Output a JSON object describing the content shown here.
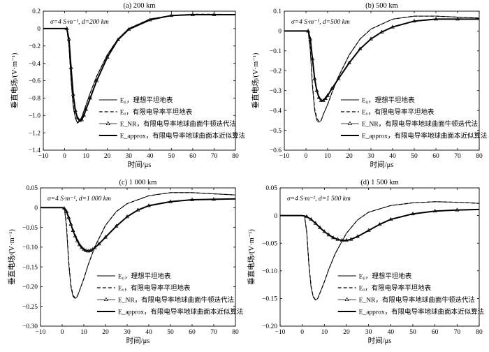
{
  "chart_data": [
    {
      "type": "line",
      "title": "(a) 200 km",
      "annotation": "σ=4 S·m⁻¹, d=200 km",
      "xlabel": "时间/μs",
      "ylabel": "垂直电场/(V·m⁻¹)",
      "xlim": [
        -10,
        80
      ],
      "ylim": [
        -1.4,
        0.2
      ],
      "xticks": [
        -10,
        0,
        10,
        20,
        30,
        40,
        50,
        60,
        70,
        80
      ],
      "yticks": [
        -1.4,
        -1.2,
        -1.0,
        -0.8,
        -0.6,
        -0.4,
        -0.2,
        0,
        0.2
      ],
      "legend_position": "lower-right",
      "series": [
        {
          "name": "E₀，理想平坦地表",
          "style": "thin-solid",
          "x": [
            -10,
            0,
            1,
            2,
            3,
            4,
            5,
            6,
            7,
            8,
            10,
            12,
            15,
            20,
            25,
            30,
            40,
            50,
            60,
            70,
            80
          ],
          "y": [
            0,
            0,
            0,
            -0.2,
            -0.6,
            -0.9,
            -1.03,
            -1.09,
            -1.07,
            -1.02,
            -0.88,
            -0.74,
            -0.55,
            -0.3,
            -0.12,
            0.0,
            0.11,
            0.15,
            0.165,
            0.165,
            0.16
          ]
        },
        {
          "name": "Eₒ，有限电导率平坦地表",
          "style": "dashed",
          "x": [
            -10,
            0,
            1,
            2,
            3,
            4,
            5,
            6,
            7,
            8,
            10,
            12,
            15,
            20,
            25,
            30,
            40,
            50,
            60,
            70,
            80
          ],
          "y": [
            0,
            0,
            0,
            -0.19,
            -0.58,
            -0.88,
            -1.02,
            -1.08,
            -1.07,
            -1.02,
            -0.88,
            -0.74,
            -0.55,
            -0.3,
            -0.12,
            0.0,
            0.11,
            0.15,
            0.165,
            0.165,
            0.16
          ]
        },
        {
          "name": "E_NR，有限电导率地球曲面牛顿迭代法",
          "style": "triangle-markers",
          "x": [
            -10,
            0,
            1,
            2,
            3,
            4,
            5,
            6,
            7,
            8,
            9,
            10,
            12,
            15,
            20,
            25,
            30,
            40,
            50,
            60,
            70,
            80
          ],
          "y": [
            0,
            0,
            0,
            -0.12,
            -0.45,
            -0.76,
            -0.94,
            -1.03,
            -1.06,
            -1.05,
            -1.0,
            -0.93,
            -0.8,
            -0.6,
            -0.33,
            -0.13,
            -0.01,
            0.1,
            0.15,
            0.16,
            0.16,
            0.16
          ]
        },
        {
          "name": "E_approx，有限电导率地球曲面本近似算法",
          "style": "thick-solid",
          "x": [
            -10,
            0,
            1,
            2,
            3,
            4,
            5,
            6,
            7,
            8,
            9,
            10,
            12,
            15,
            20,
            25,
            30,
            40,
            50,
            60,
            70,
            80
          ],
          "y": [
            0,
            0,
            0,
            -0.12,
            -0.45,
            -0.76,
            -0.94,
            -1.03,
            -1.06,
            -1.05,
            -1.0,
            -0.93,
            -0.8,
            -0.6,
            -0.33,
            -0.13,
            -0.01,
            0.1,
            0.15,
            0.16,
            0.16,
            0.16
          ]
        }
      ]
    },
    {
      "type": "line",
      "title": "(b) 500 km",
      "annotation": "σ=4 S·m⁻¹, d=500 km",
      "xlabel": "时间/μs",
      "ylabel": "垂直电场/(V·m⁻¹)",
      "xlim": [
        -10,
        80
      ],
      "ylim": [
        -0.6,
        0.1
      ],
      "xticks": [
        -10,
        0,
        10,
        20,
        30,
        40,
        50,
        60,
        70,
        80
      ],
      "yticks": [
        -0.6,
        -0.5,
        -0.4,
        -0.3,
        -0.2,
        -0.1,
        0,
        0.1
      ],
      "legend_position": "lower-right",
      "series": [
        {
          "name": "E₀，理想平坦地表",
          "style": "thin-solid",
          "x": [
            -10,
            0,
            1,
            2,
            3,
            4,
            5,
            6,
            7,
            8,
            10,
            12,
            15,
            20,
            25,
            30,
            40,
            50,
            60,
            70,
            80
          ],
          "y": [
            0,
            0,
            0,
            -0.1,
            -0.28,
            -0.4,
            -0.45,
            -0.46,
            -0.45,
            -0.42,
            -0.37,
            -0.31,
            -0.23,
            -0.12,
            -0.04,
            0.01,
            0.06,
            0.075,
            0.075,
            0.07,
            0.065
          ]
        },
        {
          "name": "Eₒ，有限电导率平坦地表",
          "style": "dashed",
          "x": [
            -10,
            0,
            1,
            2,
            3,
            4,
            5,
            6,
            7,
            8,
            10,
            12,
            15,
            20,
            25,
            30,
            40,
            50,
            60,
            70,
            80
          ],
          "y": [
            0,
            0,
            0,
            -0.09,
            -0.27,
            -0.39,
            -0.44,
            -0.455,
            -0.45,
            -0.42,
            -0.37,
            -0.31,
            -0.23,
            -0.12,
            -0.04,
            0.01,
            0.06,
            0.075,
            0.075,
            0.07,
            0.065
          ]
        },
        {
          "name": "E_NR，有限电导率地球曲面牛顿迭代法",
          "style": "triangle-markers",
          "x": [
            -10,
            0,
            1,
            2,
            3,
            4,
            5,
            6,
            7,
            8,
            9,
            10,
            12,
            15,
            20,
            25,
            30,
            35,
            40,
            50,
            60,
            70,
            80
          ],
          "y": [
            0,
            0,
            0,
            -0.04,
            -0.14,
            -0.24,
            -0.3,
            -0.335,
            -0.35,
            -0.35,
            -0.34,
            -0.325,
            -0.29,
            -0.24,
            -0.16,
            -0.09,
            -0.04,
            -0.005,
            0.02,
            0.05,
            0.06,
            0.06,
            0.06
          ]
        },
        {
          "name": "E_approx，有限电导率地球曲面本近似算法",
          "style": "thick-solid",
          "x": [
            -10,
            0,
            1,
            2,
            3,
            4,
            5,
            6,
            7,
            8,
            9,
            10,
            12,
            15,
            20,
            25,
            30,
            35,
            40,
            50,
            60,
            70,
            80
          ],
          "y": [
            0,
            0,
            0,
            -0.04,
            -0.14,
            -0.24,
            -0.3,
            -0.335,
            -0.35,
            -0.35,
            -0.34,
            -0.325,
            -0.29,
            -0.24,
            -0.16,
            -0.09,
            -0.04,
            -0.005,
            0.02,
            0.05,
            0.06,
            0.06,
            0.06
          ]
        }
      ]
    },
    {
      "type": "line",
      "title": "(c) 1 000 km",
      "annotation": "σ=4 S·m⁻¹, d=1 000 km",
      "xlabel": "时间/μs",
      "ylabel": "垂直电场/(V·m⁻¹)",
      "xlim": [
        -10,
        80
      ],
      "ylim": [
        -0.3,
        0.05
      ],
      "xticks": [
        -10,
        0,
        10,
        20,
        30,
        40,
        50,
        60,
        70,
        80
      ],
      "yticks": [
        -0.3,
        -0.25,
        -0.2,
        -0.15,
        -0.1,
        -0.05,
        0,
        0.05
      ],
      "legend_position": "lower-right",
      "series": [
        {
          "name": "E₀，理想平坦地表",
          "style": "thin-solid",
          "x": [
            -10,
            0,
            1,
            2,
            3,
            4,
            5,
            6,
            7,
            8,
            10,
            12,
            15,
            20,
            25,
            30,
            40,
            50,
            60,
            70,
            80
          ],
          "y": [
            0,
            0,
            0,
            -0.05,
            -0.14,
            -0.2,
            -0.225,
            -0.23,
            -0.225,
            -0.21,
            -0.18,
            -0.145,
            -0.1,
            -0.045,
            -0.01,
            0.01,
            0.03,
            0.038,
            0.038,
            0.035,
            0.032
          ]
        },
        {
          "name": "Eₒ，有限电导率平坦地表",
          "style": "dashed",
          "x": [
            -10,
            0,
            1,
            2,
            3,
            4,
            5,
            6,
            7,
            8,
            10,
            12,
            15,
            20,
            25,
            30,
            40,
            50,
            60,
            70,
            80
          ],
          "y": [
            0,
            0,
            0,
            -0.045,
            -0.135,
            -0.195,
            -0.222,
            -0.228,
            -0.224,
            -0.21,
            -0.18,
            -0.145,
            -0.1,
            -0.045,
            -0.01,
            0.01,
            0.03,
            0.038,
            0.038,
            0.035,
            0.032
          ]
        },
        {
          "name": "E_NR，有限电导率地球曲面牛顿迭代法",
          "style": "triangle-markers",
          "x": [
            -10,
            0,
            1,
            2,
            3,
            4,
            5,
            6,
            7,
            8,
            9,
            10,
            11,
            12,
            13,
            14,
            15,
            17,
            20,
            25,
            30,
            35,
            40,
            50,
            60,
            70,
            80
          ],
          "y": [
            0,
            0,
            -0.002,
            -0.01,
            -0.025,
            -0.042,
            -0.058,
            -0.072,
            -0.084,
            -0.094,
            -0.101,
            -0.106,
            -0.109,
            -0.11,
            -0.109,
            -0.106,
            -0.102,
            -0.092,
            -0.075,
            -0.047,
            -0.023,
            -0.006,
            0.005,
            0.015,
            0.02,
            0.021,
            0.022
          ]
        },
        {
          "name": "E_approx，有限电导率地球曲面本近似算法",
          "style": "thick-solid",
          "x": [
            -10,
            0,
            1,
            2,
            3,
            4,
            5,
            6,
            7,
            8,
            9,
            10,
            11,
            12,
            13,
            14,
            15,
            17,
            20,
            25,
            30,
            35,
            40,
            50,
            60,
            70,
            80
          ],
          "y": [
            0,
            0,
            -0.002,
            -0.01,
            -0.025,
            -0.042,
            -0.058,
            -0.072,
            -0.084,
            -0.094,
            -0.101,
            -0.106,
            -0.109,
            -0.11,
            -0.109,
            -0.106,
            -0.102,
            -0.092,
            -0.075,
            -0.047,
            -0.023,
            -0.006,
            0.005,
            0.015,
            0.02,
            0.021,
            0.022
          ]
        }
      ]
    },
    {
      "type": "line",
      "title": "(d) 1 500 km",
      "annotation": "σ=4 S·m⁻¹, d=1 500 km",
      "xlabel": "时间/μs",
      "ylabel": "垂直电场/(V·m⁻¹)",
      "xlim": [
        -10,
        80
      ],
      "ylim": [
        -0.2,
        0.05
      ],
      "xticks": [
        -10,
        0,
        10,
        20,
        30,
        40,
        50,
        60,
        70,
        80
      ],
      "yticks": [
        -0.2,
        -0.15,
        -0.1,
        -0.05,
        0,
        0.05
      ],
      "legend_position": "lower-right",
      "series": [
        {
          "name": "E₀，理想平坦地表",
          "style": "thin-solid",
          "x": [
            -10,
            0,
            1,
            2,
            3,
            4,
            5,
            6,
            7,
            8,
            10,
            12,
            15,
            20,
            25,
            30,
            40,
            50,
            60,
            70,
            80
          ],
          "y": [
            0,
            0,
            0,
            -0.03,
            -0.09,
            -0.13,
            -0.148,
            -0.153,
            -0.15,
            -0.14,
            -0.12,
            -0.097,
            -0.068,
            -0.032,
            -0.008,
            0.006,
            0.018,
            0.023,
            0.025,
            0.024,
            0.022
          ]
        },
        {
          "name": "Eₒ，有限电导率平坦地表",
          "style": "dashed",
          "x": [
            -10,
            0,
            1,
            2,
            3,
            4,
            5,
            6,
            7,
            8,
            10,
            12,
            15,
            20,
            25,
            30,
            40,
            50,
            60,
            70,
            80
          ],
          "y": [
            0,
            0,
            0,
            -0.028,
            -0.087,
            -0.128,
            -0.147,
            -0.152,
            -0.15,
            -0.14,
            -0.12,
            -0.097,
            -0.068,
            -0.032,
            -0.008,
            0.006,
            0.018,
            0.023,
            0.025,
            0.024,
            0.022
          ]
        },
        {
          "name": "E_NR，有限电导率地球曲面牛顿迭代法",
          "style": "triangle-markers",
          "x": [
            -10,
            0,
            2,
            4,
            6,
            8,
            10,
            12,
            14,
            16,
            18,
            20,
            22,
            25,
            30,
            35,
            40,
            50,
            60,
            70,
            80
          ],
          "y": [
            0,
            0,
            -0.002,
            -0.007,
            -0.014,
            -0.022,
            -0.029,
            -0.035,
            -0.04,
            -0.043,
            -0.045,
            -0.045,
            -0.043,
            -0.038,
            -0.027,
            -0.016,
            -0.007,
            0.003,
            0.008,
            0.01,
            0.011
          ]
        },
        {
          "name": "E_approx，有限电导率地球曲面本近似算法",
          "style": "thick-solid",
          "x": [
            -10,
            0,
            2,
            4,
            6,
            8,
            10,
            12,
            14,
            16,
            18,
            20,
            22,
            25,
            30,
            35,
            40,
            50,
            60,
            70,
            80
          ],
          "y": [
            0,
            0,
            -0.002,
            -0.007,
            -0.014,
            -0.022,
            -0.029,
            -0.035,
            -0.04,
            -0.043,
            -0.045,
            -0.045,
            -0.043,
            -0.038,
            -0.027,
            -0.016,
            -0.007,
            0.003,
            0.008,
            0.01,
            0.011
          ]
        }
      ]
    }
  ]
}
